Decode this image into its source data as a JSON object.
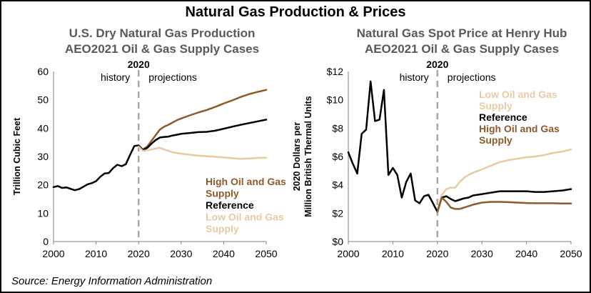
{
  "title": "Natural Gas Production & Prices",
  "source": "Source: Energy Information Administration",
  "colors": {
    "high_oil_gas": "#8c5a2b",
    "reference": "#000000",
    "low_oil_gas": "#e8c9a3",
    "divider": "#a6a6a6",
    "subtitle": "#595959"
  },
  "chart_data": [
    {
      "type": "line",
      "title": "U.S. Dry Natural Gas Production",
      "subtitle": "AEO2021 Oil & Gas Supply Cases",
      "ylabel": "Trillion Cubic Feet",
      "xlabel": "",
      "xlim": [
        2000,
        2050
      ],
      "ylim": [
        0,
        60
      ],
      "x_ticks": [
        "2000",
        "2010",
        "2020",
        "2030",
        "2040",
        "2050"
      ],
      "y_ticks": [
        "0",
        "10",
        "20",
        "30",
        "40",
        "50",
        "60"
      ],
      "grid": false,
      "divider_year": 2020,
      "divider_label": "2020",
      "history_label": "history",
      "projections_label": "projections",
      "legend_position": "lower-right",
      "series": [
        {
          "name": "High Oil and Gas Supply",
          "key": "high_oil_gas",
          "points": [
            [
              2020,
              33.5
            ],
            [
              2021,
              32.5
            ],
            [
              2022,
              33.5
            ],
            [
              2023,
              35.5
            ],
            [
              2024,
              37.5
            ],
            [
              2025,
              39.5
            ],
            [
              2026,
              40.5
            ],
            [
              2027,
              41.2
            ],
            [
              2028,
              42.0
            ],
            [
              2029,
              42.8
            ],
            [
              2030,
              43.4
            ],
            [
              2032,
              44.5
            ],
            [
              2034,
              45.5
            ],
            [
              2036,
              46.4
            ],
            [
              2038,
              47.5
            ],
            [
              2040,
              48.7
            ],
            [
              2042,
              49.8
            ],
            [
              2044,
              51.0
            ],
            [
              2046,
              52.0
            ],
            [
              2048,
              52.8
            ],
            [
              2050,
              53.5
            ]
          ]
        },
        {
          "name": "Reference",
          "key": "reference",
          "points": [
            [
              2000,
              19.2
            ],
            [
              2001,
              19.6
            ],
            [
              2002,
              18.9
            ],
            [
              2003,
              19.1
            ],
            [
              2004,
              18.6
            ],
            [
              2005,
              18.1
            ],
            [
              2006,
              18.5
            ],
            [
              2007,
              19.3
            ],
            [
              2008,
              20.2
            ],
            [
              2009,
              20.6
            ],
            [
              2010,
              21.3
            ],
            [
              2011,
              22.9
            ],
            [
              2012,
              24.0
            ],
            [
              2013,
              24.2
            ],
            [
              2014,
              25.9
            ],
            [
              2015,
              27.1
            ],
            [
              2016,
              26.6
            ],
            [
              2017,
              27.3
            ],
            [
              2018,
              30.6
            ],
            [
              2019,
              33.7
            ],
            [
              2020,
              33.9
            ],
            [
              2021,
              32.3
            ],
            [
              2022,
              33.0
            ],
            [
              2023,
              34.5
            ],
            [
              2024,
              35.8
            ],
            [
              2025,
              36.7
            ],
            [
              2026,
              36.9
            ],
            [
              2027,
              37.0
            ],
            [
              2028,
              37.4
            ],
            [
              2029,
              37.7
            ],
            [
              2030,
              38.0
            ],
            [
              2032,
              38.3
            ],
            [
              2034,
              38.6
            ],
            [
              2036,
              38.7
            ],
            [
              2038,
              39.1
            ],
            [
              2040,
              39.8
            ],
            [
              2042,
              40.5
            ],
            [
              2044,
              41.2
            ],
            [
              2046,
              41.8
            ],
            [
              2048,
              42.4
            ],
            [
              2050,
              43.0
            ]
          ]
        },
        {
          "name": "Low Oil and Gas Supply",
          "key": "low_oil_gas",
          "points": [
            [
              2020,
              33.5
            ],
            [
              2021,
              32.0
            ],
            [
              2022,
              32.2
            ],
            [
              2023,
              32.5
            ],
            [
              2024,
              32.8
            ],
            [
              2025,
              33.1
            ],
            [
              2026,
              32.5
            ],
            [
              2027,
              32.0
            ],
            [
              2028,
              31.5
            ],
            [
              2030,
              31.0
            ],
            [
              2032,
              30.6
            ],
            [
              2034,
              30.3
            ],
            [
              2036,
              30.1
            ],
            [
              2038,
              29.9
            ],
            [
              2040,
              29.7
            ],
            [
              2042,
              29.4
            ],
            [
              2044,
              29.2
            ],
            [
              2046,
              29.3
            ],
            [
              2048,
              29.5
            ],
            [
              2050,
              29.6
            ]
          ]
        }
      ],
      "legend": [
        {
          "text": "High Oil and Gas",
          "key": "high_oil_gas"
        },
        {
          "text": "Supply",
          "key": "high_oil_gas"
        },
        {
          "text": "Reference",
          "key": "reference"
        },
        {
          "text": "Low Oil and Gas",
          "key": "low_oil_gas"
        },
        {
          "text": "Supply",
          "key": "low_oil_gas"
        }
      ]
    },
    {
      "type": "line",
      "title": "Natural Gas Spot Price at Henry Hub",
      "subtitle": "AEO2021 Oil & Gas Supply Cases",
      "ylabel_lines": [
        "2020 Dollars per",
        "Million British Thermal Units"
      ],
      "xlabel": "",
      "xlim": [
        2000,
        2050
      ],
      "ylim": [
        0,
        12
      ],
      "x_ticks": [
        "2000",
        "2010",
        "2020",
        "2030",
        "2040",
        "2050"
      ],
      "y_ticks": [
        "$0",
        "$2",
        "$4",
        "$6",
        "$8",
        "$10",
        "$12"
      ],
      "grid": false,
      "divider_year": 2020,
      "divider_label": "2020",
      "history_label": "history",
      "projections_label": "projections",
      "legend_position": "upper-right",
      "series": [
        {
          "name": "Low Oil and Gas Supply",
          "key": "low_oil_gas",
          "points": [
            [
              2020,
              2.1
            ],
            [
              2021,
              3.3
            ],
            [
              2022,
              3.7
            ],
            [
              2023,
              3.8
            ],
            [
              2024,
              3.8
            ],
            [
              2025,
              4.2
            ],
            [
              2026,
              4.5
            ],
            [
              2027,
              4.7
            ],
            [
              2028,
              4.85
            ],
            [
              2030,
              5.1
            ],
            [
              2032,
              5.35
            ],
            [
              2034,
              5.6
            ],
            [
              2036,
              5.75
            ],
            [
              2038,
              5.85
            ],
            [
              2040,
              5.95
            ],
            [
              2042,
              6.0
            ],
            [
              2044,
              6.1
            ],
            [
              2046,
              6.25
            ],
            [
              2048,
              6.35
            ],
            [
              2050,
              6.5
            ]
          ]
        },
        {
          "name": "Reference",
          "key": "reference",
          "points": [
            [
              2000,
              6.3
            ],
            [
              2001,
              5.5
            ],
            [
              2002,
              4.8
            ],
            [
              2003,
              7.6
            ],
            [
              2004,
              7.9
            ],
            [
              2005,
              11.3
            ],
            [
              2006,
              8.5
            ],
            [
              2007,
              8.6
            ],
            [
              2008,
              10.7
            ],
            [
              2009,
              4.7
            ],
            [
              2010,
              5.2
            ],
            [
              2011,
              4.7
            ],
            [
              2012,
              3.1
            ],
            [
              2013,
              4.2
            ],
            [
              2014,
              4.8
            ],
            [
              2015,
              2.9
            ],
            [
              2016,
              2.7
            ],
            [
              2017,
              3.2
            ],
            [
              2018,
              3.3
            ],
            [
              2019,
              2.7
            ],
            [
              2020,
              2.1
            ],
            [
              2021,
              3.1
            ],
            [
              2022,
              3.2
            ],
            [
              2023,
              3.0
            ],
            [
              2024,
              2.85
            ],
            [
              2025,
              2.95
            ],
            [
              2026,
              3.05
            ],
            [
              2027,
              3.1
            ],
            [
              2028,
              3.25
            ],
            [
              2030,
              3.35
            ],
            [
              2032,
              3.45
            ],
            [
              2034,
              3.55
            ],
            [
              2036,
              3.55
            ],
            [
              2038,
              3.55
            ],
            [
              2040,
              3.55
            ],
            [
              2042,
              3.5
            ],
            [
              2044,
              3.5
            ],
            [
              2046,
              3.55
            ],
            [
              2048,
              3.6
            ],
            [
              2050,
              3.7
            ]
          ]
        },
        {
          "name": "High Oil and Gas Supply",
          "key": "high_oil_gas",
          "points": [
            [
              2020,
              2.1
            ],
            [
              2021,
              3.1
            ],
            [
              2022,
              2.8
            ],
            [
              2023,
              2.4
            ],
            [
              2024,
              2.3
            ],
            [
              2025,
              2.3
            ],
            [
              2026,
              2.4
            ],
            [
              2027,
              2.5
            ],
            [
              2028,
              2.6
            ],
            [
              2030,
              2.75
            ],
            [
              2032,
              2.8
            ],
            [
              2034,
              2.8
            ],
            [
              2036,
              2.78
            ],
            [
              2038,
              2.75
            ],
            [
              2040,
              2.72
            ],
            [
              2042,
              2.7
            ],
            [
              2044,
              2.7
            ],
            [
              2046,
              2.7
            ],
            [
              2048,
              2.68
            ],
            [
              2050,
              2.68
            ]
          ]
        }
      ],
      "legend": [
        {
          "text": "Low Oil and Gas",
          "key": "low_oil_gas"
        },
        {
          "text": "Supply",
          "key": "low_oil_gas"
        },
        {
          "text": "Reference",
          "key": "reference"
        },
        {
          "text": "High Oil and Gas",
          "key": "high_oil_gas"
        },
        {
          "text": "Supply",
          "key": "high_oil_gas"
        }
      ]
    }
  ]
}
